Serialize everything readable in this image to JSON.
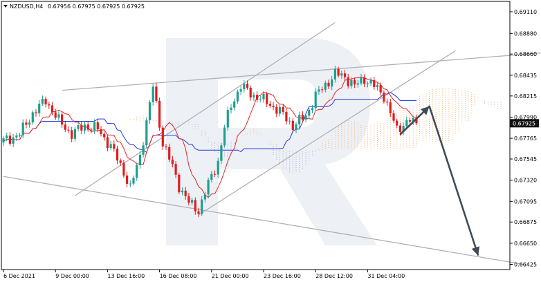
{
  "chart_data": {
    "type": "candlestick",
    "header": {
      "symbol_tf": "NZDUSD,H4",
      "ohlc": "0.67956 0.67975 0.67925 0.67925"
    },
    "current_price_label": "0.67925",
    "ylim": [
      0.6637,
      0.6922
    ],
    "y_ticks": [
      "0.69110",
      "0.68880",
      "0.68660",
      "0.68435",
      "0.68215",
      "0.67990",
      "0.67765",
      "0.67545",
      "0.67320",
      "0.67095",
      "0.66875",
      "0.66650",
      "0.66425"
    ],
    "y_tick_values": [
      0.6911,
      0.6888,
      0.6866,
      0.68435,
      0.68215,
      0.6799,
      0.67765,
      0.67545,
      0.6732,
      0.67095,
      0.66875,
      0.6665,
      0.66425
    ],
    "x_ticks": [
      "6 Dec 2021",
      "9 Dec 00:00",
      "13 Dec 16:00",
      "16 Dec 08:00",
      "21 Dec 00:00",
      "23 Dec 16:00",
      "28 Dec 12:00",
      "31 Dec 04:00"
    ],
    "x_tick_bars": [
      0,
      16,
      32,
      48,
      64,
      80,
      96,
      112
    ],
    "bar_count": 128,
    "forecast_bar_extent": 150,
    "colors": {
      "bull": "#1f9e8e",
      "bear": "#e21b1b",
      "tenkan": "#e8231f",
      "kijun": "#2233dd",
      "cloud": "#f0a05a",
      "cloud_bear": "#b58fd8",
      "trend": "#b0b0b0",
      "arrow": "#404b58",
      "price_tag": "#111111",
      "watermark": "#dfe5ef"
    },
    "trendlines": [
      {
        "name": "channel-upper-line",
        "from": [
          18,
          0.68275
        ],
        "to": [
          174,
          0.68695
        ]
      },
      {
        "name": "channel-lower-line",
        "from": [
          0,
          0.6736
        ],
        "to": [
          160,
          0.66425
        ]
      },
      {
        "name": "ascending-upper-line",
        "from": [
          22,
          0.67155
        ],
        "to": [
          102,
          0.68995
        ]
      },
      {
        "name": "ascending-lower-line",
        "from": [
          60,
          0.6695
        ],
        "to": [
          139,
          0.68695
        ]
      }
    ],
    "forecast_path": [
      [
        122,
        0.67805
      ],
      [
        131,
        0.68105
      ],
      [
        146,
        0.6652
      ]
    ]
  }
}
